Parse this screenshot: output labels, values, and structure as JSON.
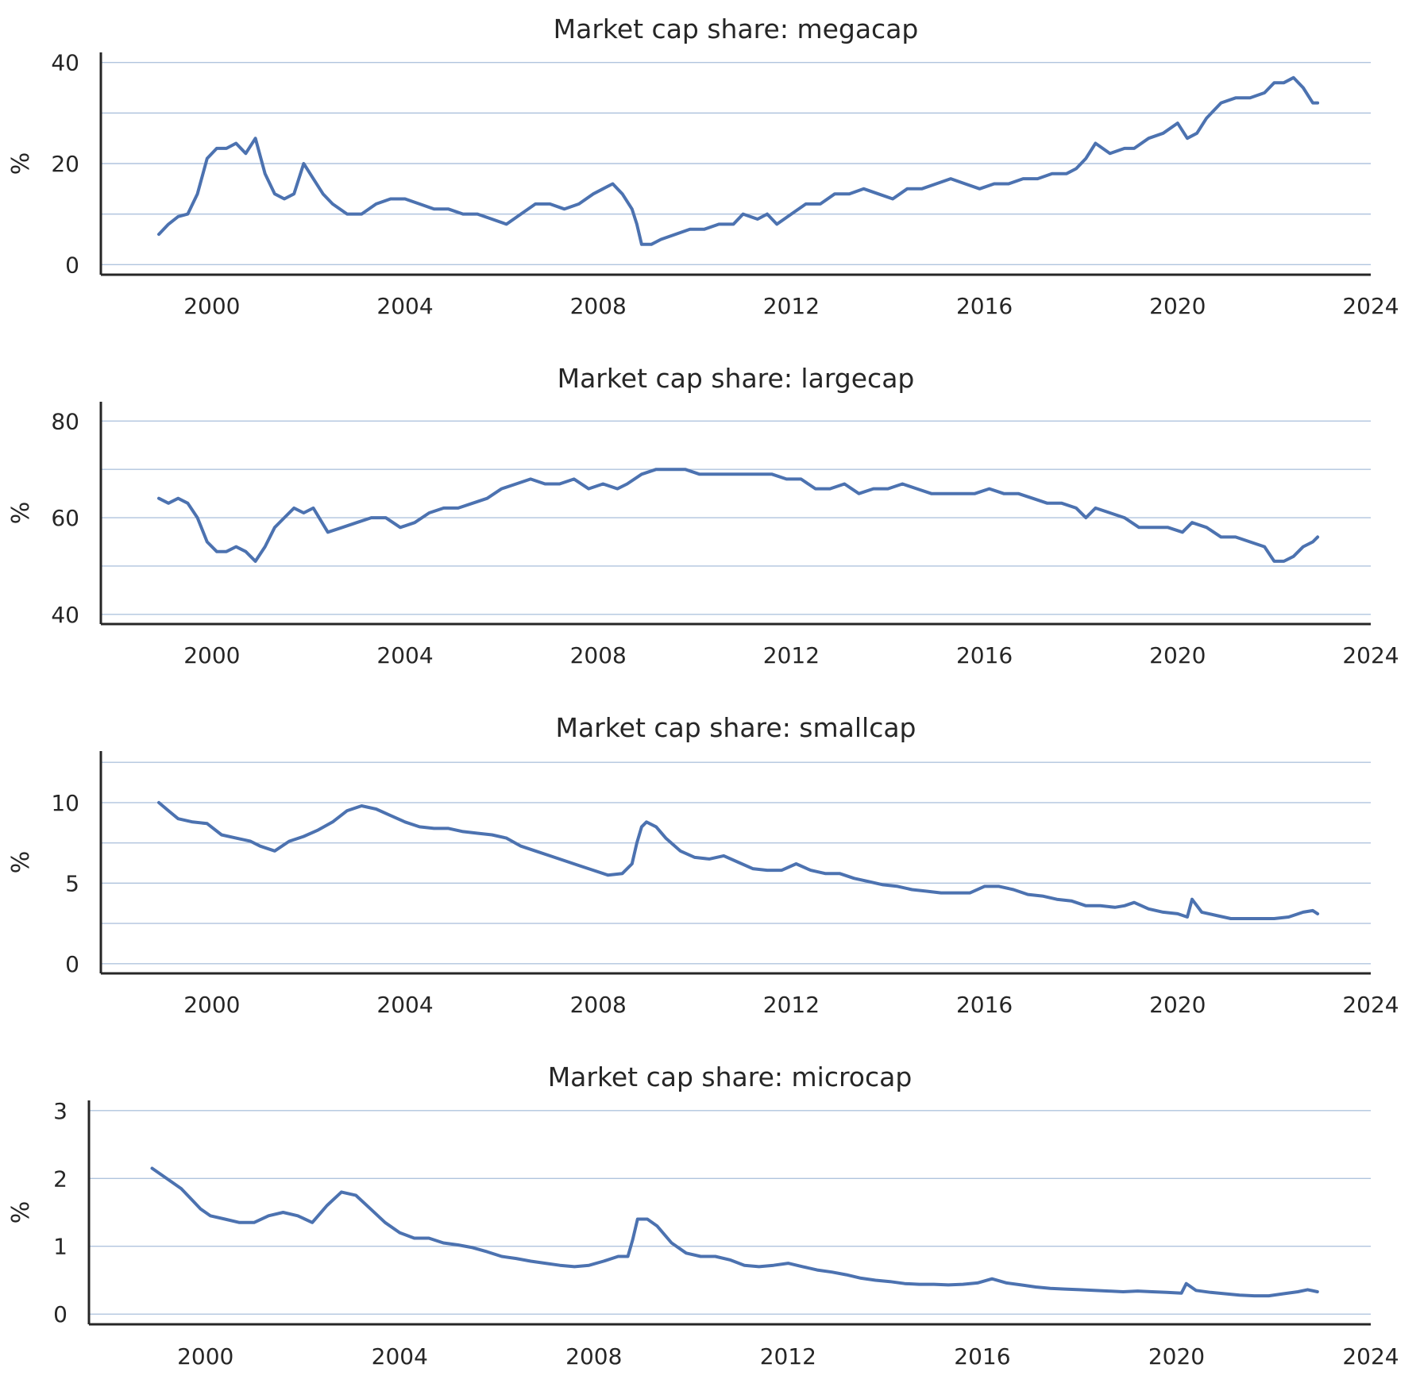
{
  "colors": {
    "line": "#4c72b0",
    "grid": "#b0c4de",
    "axis": "#262626",
    "text": "#262626"
  },
  "chart_data": [
    {
      "type": "line",
      "title": "Market cap share: megacap",
      "ylabel": "%",
      "ylim": [
        -2,
        42
      ],
      "yticks": [
        0,
        20,
        40
      ],
      "gridlines": [
        0,
        10,
        20,
        30,
        40
      ],
      "xlim": [
        1997.7,
        2024.0
      ],
      "xticks": [
        2000,
        2004,
        2008,
        2012,
        2016,
        2020,
        2024
      ],
      "series": [
        {
          "x": [
            1998.9,
            1999.1,
            1999.3,
            1999.5,
            1999.7,
            1999.9,
            2000.1,
            2000.3,
            2000.5,
            2000.7,
            2000.9,
            2001.1,
            2001.3,
            2001.5,
            2001.7,
            2001.9,
            2002.1,
            2002.3,
            2002.5,
            2002.8,
            2003.1,
            2003.4,
            2003.7,
            2004.0,
            2004.3,
            2004.6,
            2004.9,
            2005.2,
            2005.5,
            2005.8,
            2006.1,
            2006.4,
            2006.7,
            2007.0,
            2007.3,
            2007.6,
            2007.9,
            2008.1,
            2008.3,
            2008.5,
            2008.7,
            2008.8,
            2008.9,
            2009.1,
            2009.3,
            2009.6,
            2009.9,
            2010.2,
            2010.5,
            2010.8,
            2011.0,
            2011.3,
            2011.5,
            2011.7,
            2012.0,
            2012.3,
            2012.6,
            2012.9,
            2013.2,
            2013.5,
            2013.8,
            2014.1,
            2014.4,
            2014.7,
            2015.0,
            2015.3,
            2015.6,
            2015.9,
            2016.2,
            2016.5,
            2016.8,
            2017.1,
            2017.4,
            2017.7,
            2017.9,
            2018.1,
            2018.3,
            2018.6,
            2018.9,
            2019.1,
            2019.4,
            2019.7,
            2020.0,
            2020.2,
            2020.4,
            2020.6,
            2020.9,
            2021.2,
            2021.5,
            2021.8,
            2022.0,
            2022.2,
            2022.4,
            2022.6,
            2022.8,
            2022.9
          ],
          "y": [
            6,
            8,
            9.5,
            10,
            14,
            21,
            23,
            23,
            24,
            22,
            25,
            18,
            14,
            13,
            14,
            20,
            17,
            14,
            12,
            10,
            10,
            12,
            13,
            13,
            12,
            11,
            11,
            10,
            10,
            9,
            8,
            10,
            12,
            12,
            11,
            12,
            14,
            15,
            16,
            14,
            11,
            8,
            4,
            4,
            5,
            6,
            7,
            7,
            8,
            8,
            10,
            9,
            10,
            8,
            10,
            12,
            12,
            14,
            14,
            15,
            14,
            13,
            15,
            15,
            16,
            17,
            16,
            15,
            16,
            16,
            17,
            17,
            18,
            18,
            19,
            21,
            24,
            22,
            23,
            23,
            25,
            26,
            28,
            25,
            26,
            29,
            32,
            33,
            33,
            34,
            36,
            36,
            37,
            35,
            32,
            32
          ]
        }
      ]
    },
    {
      "type": "line",
      "title": "Market cap share: largecap",
      "ylabel": "%",
      "ylim": [
        38,
        84
      ],
      "yticks": [
        40,
        60,
        80
      ],
      "gridlines": [
        40,
        50,
        60,
        70,
        80
      ],
      "xlim": [
        1997.7,
        2024.0
      ],
      "xticks": [
        2000,
        2004,
        2008,
        2012,
        2016,
        2020,
        2024
      ],
      "series": [
        {
          "x": [
            1998.9,
            1999.1,
            1999.3,
            1999.5,
            1999.7,
            1999.9,
            2000.1,
            2000.3,
            2000.5,
            2000.7,
            2000.9,
            2001.1,
            2001.3,
            2001.5,
            2001.7,
            2001.9,
            2002.1,
            2002.4,
            2002.7,
            2003.0,
            2003.3,
            2003.6,
            2003.9,
            2004.2,
            2004.5,
            2004.8,
            2005.1,
            2005.4,
            2005.7,
            2006.0,
            2006.3,
            2006.6,
            2006.9,
            2007.2,
            2007.5,
            2007.8,
            2008.1,
            2008.4,
            2008.6,
            2008.9,
            2009.2,
            2009.5,
            2009.8,
            2010.1,
            2010.4,
            2010.7,
            2011.0,
            2011.3,
            2011.6,
            2011.9,
            2012.2,
            2012.5,
            2012.8,
            2013.1,
            2013.4,
            2013.7,
            2014.0,
            2014.3,
            2014.6,
            2014.9,
            2015.2,
            2015.5,
            2015.8,
            2016.1,
            2016.4,
            2016.7,
            2017.0,
            2017.3,
            2017.6,
            2017.9,
            2018.1,
            2018.3,
            2018.6,
            2018.9,
            2019.2,
            2019.5,
            2019.8,
            2020.1,
            2020.3,
            2020.6,
            2020.9,
            2021.2,
            2021.5,
            2021.8,
            2022.0,
            2022.2,
            2022.4,
            2022.6,
            2022.8,
            2022.9
          ],
          "y": [
            64,
            63,
            64,
            63,
            60,
            55,
            53,
            53,
            54,
            53,
            51,
            54,
            58,
            60,
            62,
            61,
            62,
            57,
            58,
            59,
            60,
            60,
            58,
            59,
            61,
            62,
            62,
            63,
            64,
            66,
            67,
            68,
            67,
            67,
            68,
            66,
            67,
            66,
            67,
            69,
            70,
            70,
            70,
            69,
            69,
            69,
            69,
            69,
            69,
            68,
            68,
            66,
            66,
            67,
            65,
            66,
            66,
            67,
            66,
            65,
            65,
            65,
            65,
            66,
            65,
            65,
            64,
            63,
            63,
            62,
            60,
            62,
            61,
            60,
            58,
            58,
            58,
            57,
            59,
            58,
            56,
            56,
            55,
            54,
            51,
            51,
            52,
            54,
            55,
            56
          ]
        }
      ]
    },
    {
      "type": "line",
      "title": "Market cap share: smallcap",
      "ylabel": "%",
      "ylim": [
        -0.6,
        13.2
      ],
      "yticks": [
        0,
        5,
        10
      ],
      "gridlines": [
        0,
        2.5,
        5,
        7.5,
        10,
        12.5
      ],
      "xlim": [
        1997.7,
        2024.0
      ],
      "xticks": [
        2000,
        2004,
        2008,
        2012,
        2016,
        2020,
        2024
      ],
      "series": [
        {
          "x": [
            1998.9,
            1999.1,
            1999.3,
            1999.6,
            1999.9,
            2000.2,
            2000.5,
            2000.8,
            2001.0,
            2001.3,
            2001.6,
            2001.9,
            2002.2,
            2002.5,
            2002.8,
            2003.1,
            2003.4,
            2003.7,
            2004.0,
            2004.3,
            2004.6,
            2004.9,
            2005.2,
            2005.5,
            2005.8,
            2006.1,
            2006.4,
            2006.7,
            2007.0,
            2007.3,
            2007.6,
            2007.9,
            2008.2,
            2008.5,
            2008.7,
            2008.8,
            2008.9,
            2009.0,
            2009.2,
            2009.4,
            2009.7,
            2010.0,
            2010.3,
            2010.6,
            2010.9,
            2011.2,
            2011.5,
            2011.8,
            2012.1,
            2012.4,
            2012.7,
            2013.0,
            2013.3,
            2013.6,
            2013.9,
            2014.2,
            2014.5,
            2014.8,
            2015.1,
            2015.4,
            2015.7,
            2016.0,
            2016.3,
            2016.6,
            2016.9,
            2017.2,
            2017.5,
            2017.8,
            2018.1,
            2018.4,
            2018.7,
            2018.9,
            2019.1,
            2019.4,
            2019.7,
            2020.0,
            2020.2,
            2020.3,
            2020.5,
            2020.8,
            2021.1,
            2021.4,
            2021.7,
            2022.0,
            2022.3,
            2022.6,
            2022.8,
            2022.9
          ],
          "y": [
            10,
            9.5,
            9,
            8.8,
            8.7,
            8.0,
            7.8,
            7.6,
            7.3,
            7.0,
            7.6,
            7.9,
            8.3,
            8.8,
            9.5,
            9.8,
            9.6,
            9.2,
            8.8,
            8.5,
            8.4,
            8.4,
            8.2,
            8.1,
            8.0,
            7.8,
            7.3,
            7.0,
            6.7,
            6.4,
            6.1,
            5.8,
            5.5,
            5.6,
            6.2,
            7.5,
            8.5,
            8.8,
            8.5,
            7.8,
            7.0,
            6.6,
            6.5,
            6.7,
            6.3,
            5.9,
            5.8,
            5.8,
            6.2,
            5.8,
            5.6,
            5.6,
            5.3,
            5.1,
            4.9,
            4.8,
            4.6,
            4.5,
            4.4,
            4.4,
            4.4,
            4.8,
            4.8,
            4.6,
            4.3,
            4.2,
            4.0,
            3.9,
            3.6,
            3.6,
            3.5,
            3.6,
            3.8,
            3.4,
            3.2,
            3.1,
            2.9,
            4.0,
            3.2,
            3.0,
            2.8,
            2.8,
            2.8,
            2.8,
            2.9,
            3.2,
            3.3,
            3.1
          ]
        }
      ]
    },
    {
      "type": "line",
      "title": "Market cap share: microcap",
      "ylabel": "%",
      "ylim": [
        -0.15,
        3.15
      ],
      "yticks": [
        0,
        1,
        2,
        3
      ],
      "gridlines": [
        0,
        1,
        2,
        3
      ],
      "xlim": [
        1997.6,
        2024.0
      ],
      "xticks": [
        2000,
        2004,
        2008,
        2012,
        2016,
        2020,
        2024
      ],
      "series": [
        {
          "x": [
            1998.9,
            1999.1,
            1999.3,
            1999.5,
            1999.7,
            1999.9,
            2000.1,
            2000.4,
            2000.7,
            2001.0,
            2001.3,
            2001.6,
            2001.9,
            2002.2,
            2002.5,
            2002.8,
            2003.1,
            2003.4,
            2003.7,
            2004.0,
            2004.3,
            2004.6,
            2004.9,
            2005.2,
            2005.5,
            2005.8,
            2006.1,
            2006.4,
            2006.7,
            2007.0,
            2007.3,
            2007.6,
            2007.9,
            2008.2,
            2008.5,
            2008.7,
            2008.8,
            2008.9,
            2009.1,
            2009.3,
            2009.6,
            2009.9,
            2010.2,
            2010.5,
            2010.8,
            2011.1,
            2011.4,
            2011.7,
            2012.0,
            2012.3,
            2012.6,
            2012.9,
            2013.2,
            2013.5,
            2013.8,
            2014.1,
            2014.4,
            2014.7,
            2015.0,
            2015.3,
            2015.6,
            2015.9,
            2016.2,
            2016.5,
            2016.8,
            2017.1,
            2017.4,
            2017.7,
            2018.0,
            2018.3,
            2018.6,
            2018.9,
            2019.2,
            2019.5,
            2019.8,
            2020.1,
            2020.2,
            2020.4,
            2020.7,
            2021.0,
            2021.3,
            2021.6,
            2021.9,
            2022.2,
            2022.5,
            2022.7,
            2022.9
          ],
          "y": [
            2.15,
            2.05,
            1.95,
            1.85,
            1.7,
            1.55,
            1.45,
            1.4,
            1.35,
            1.35,
            1.45,
            1.5,
            1.45,
            1.35,
            1.6,
            1.8,
            1.75,
            1.55,
            1.35,
            1.2,
            1.12,
            1.12,
            1.05,
            1.02,
            0.98,
            0.92,
            0.85,
            0.82,
            0.78,
            0.75,
            0.72,
            0.7,
            0.72,
            0.78,
            0.85,
            0.85,
            1.1,
            1.4,
            1.4,
            1.3,
            1.05,
            0.9,
            0.85,
            0.85,
            0.8,
            0.72,
            0.7,
            0.72,
            0.75,
            0.7,
            0.65,
            0.62,
            0.58,
            0.53,
            0.5,
            0.48,
            0.45,
            0.44,
            0.44,
            0.43,
            0.44,
            0.46,
            0.52,
            0.46,
            0.43,
            0.4,
            0.38,
            0.37,
            0.36,
            0.35,
            0.34,
            0.33,
            0.34,
            0.33,
            0.32,
            0.31,
            0.45,
            0.35,
            0.32,
            0.3,
            0.28,
            0.27,
            0.27,
            0.3,
            0.33,
            0.36,
            0.33
          ]
        }
      ]
    }
  ]
}
